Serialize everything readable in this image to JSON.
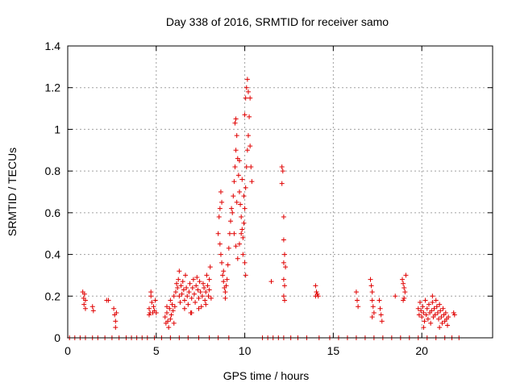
{
  "chart_data": {
    "type": "scatter",
    "title": "Day 338 of 2016, SRMTID for receiver samo",
    "xlabel": "GPS time / hours",
    "ylabel": "SRMTID / TECUs",
    "xlim": [
      0,
      24
    ],
    "ylim": [
      0,
      1.4
    ],
    "xticks": [
      0,
      5,
      10,
      15,
      20
    ],
    "yticks": [
      0,
      0.2,
      0.4,
      0.6,
      0.8,
      1,
      1.2,
      1.4
    ],
    "xtick_labels": [
      "0",
      "5",
      "10",
      "15",
      "20"
    ],
    "ytick_labels": [
      "0",
      "0.2",
      "0.4",
      "0.6",
      "0.8",
      "1",
      "1.2",
      "1.4"
    ],
    "grid": true,
    "marker": "+",
    "series_color": "#e00000",
    "series": [
      {
        "name": "SRMTID",
        "points": [
          [
            0.1,
            0
          ],
          [
            0.4,
            0
          ],
          [
            0.7,
            0
          ],
          [
            1.0,
            0
          ],
          [
            1.4,
            0
          ],
          [
            1.7,
            0
          ],
          [
            2.1,
            0
          ],
          [
            2.5,
            0
          ],
          [
            2.9,
            0
          ],
          [
            3.3,
            0
          ],
          [
            3.6,
            0
          ],
          [
            3.9,
            0
          ],
          [
            4.2,
            0
          ],
          [
            4.5,
            0
          ],
          [
            4.9,
            0
          ],
          [
            5.3,
            0
          ],
          [
            5.8,
            0
          ],
          [
            6.3,
            0
          ],
          [
            6.8,
            0
          ],
          [
            7.4,
            0
          ],
          [
            8.0,
            0
          ],
          [
            8.5,
            0
          ],
          [
            9.1,
            0
          ],
          [
            11.0,
            0
          ],
          [
            11.3,
            0
          ],
          [
            11.6,
            0
          ],
          [
            11.9,
            0
          ],
          [
            12.2,
            0
          ],
          [
            12.6,
            0
          ],
          [
            13.0,
            0
          ],
          [
            13.5,
            0
          ],
          [
            14.2,
            0
          ],
          [
            14.8,
            0
          ],
          [
            15.3,
            0
          ],
          [
            15.8,
            0
          ],
          [
            16.3,
            0
          ],
          [
            16.8,
            0
          ],
          [
            17.3,
            0
          ],
          [
            17.8,
            0
          ],
          [
            18.3,
            0
          ],
          [
            18.8,
            0
          ],
          [
            19.3,
            0
          ],
          [
            19.8,
            0
          ],
          [
            20.3,
            0
          ],
          [
            20.8,
            0
          ],
          [
            21.3,
            0
          ],
          [
            21.7,
            0
          ],
          [
            22.1,
            0
          ],
          [
            0.85,
            0.22
          ],
          [
            0.9,
            0.19
          ],
          [
            0.92,
            0.16
          ],
          [
            0.95,
            0.21
          ],
          [
            1.0,
            0.18
          ],
          [
            1.0,
            0.14
          ],
          [
            1.4,
            0.15
          ],
          [
            1.45,
            0.13
          ],
          [
            2.2,
            0.18
          ],
          [
            2.3,
            0.18
          ],
          [
            2.6,
            0.14
          ],
          [
            2.65,
            0.11
          ],
          [
            2.7,
            0.08
          ],
          [
            2.7,
            0.05
          ],
          [
            2.75,
            0.12
          ],
          [
            4.6,
            0.14
          ],
          [
            4.65,
            0.12
          ],
          [
            4.7,
            0.2
          ],
          [
            4.7,
            0.22
          ],
          [
            4.75,
            0.17
          ],
          [
            4.8,
            0.12
          ],
          [
            4.85,
            0.15
          ],
          [
            4.9,
            0.13
          ],
          [
            4.95,
            0.18
          ],
          [
            4.6,
            0.11
          ],
          [
            5.0,
            0.12
          ],
          [
            5.5,
            0.1
          ],
          [
            5.55,
            0.07
          ],
          [
            5.6,
            0.12
          ],
          [
            5.65,
            0.08
          ],
          [
            5.7,
            0.05
          ],
          [
            5.75,
            0.14
          ],
          [
            5.8,
            0.09
          ],
          [
            5.85,
            0.11
          ],
          [
            5.9,
            0.16
          ],
          [
            5.95,
            0.13
          ],
          [
            6.0,
            0.07
          ],
          [
            5.6,
            0.15
          ],
          [
            5.8,
            0.18
          ],
          [
            6.0,
            0.2
          ],
          [
            6.05,
            0.15
          ],
          [
            6.1,
            0.22
          ],
          [
            6.15,
            0.26
          ],
          [
            6.2,
            0.24
          ],
          [
            6.25,
            0.28
          ],
          [
            6.3,
            0.2
          ],
          [
            6.35,
            0.17
          ],
          [
            6.4,
            0.25
          ],
          [
            6.45,
            0.21
          ],
          [
            6.5,
            0.27
          ],
          [
            6.55,
            0.23
          ],
          [
            6.6,
            0.18
          ],
          [
            6.65,
            0.3
          ],
          [
            6.7,
            0.24
          ],
          [
            6.75,
            0.2
          ],
          [
            6.8,
            0.16
          ],
          [
            6.85,
            0.22
          ],
          [
            6.9,
            0.26
          ],
          [
            6.95,
            0.12
          ],
          [
            7.0,
            0.19
          ],
          [
            7.05,
            0.24
          ],
          [
            7.1,
            0.28
          ],
          [
            7.15,
            0.21
          ],
          [
            7.2,
            0.17
          ],
          [
            7.25,
            0.25
          ],
          [
            7.3,
            0.29
          ],
          [
            7.35,
            0.23
          ],
          [
            7.4,
            0.19
          ],
          [
            7.45,
            0.27
          ],
          [
            7.5,
            0.22
          ],
          [
            7.55,
            0.15
          ],
          [
            7.6,
            0.2
          ],
          [
            7.65,
            0.26
          ],
          [
            7.7,
            0.24
          ],
          [
            7.75,
            0.18
          ],
          [
            7.8,
            0.22
          ],
          [
            7.85,
            0.3
          ],
          [
            7.9,
            0.25
          ],
          [
            7.95,
            0.2
          ],
          [
            8.0,
            0.23
          ],
          [
            8.05,
            0.34
          ],
          [
            8.1,
            0.19
          ],
          [
            6.3,
            0.32
          ],
          [
            6.6,
            0.14
          ],
          [
            7.0,
            0.12
          ],
          [
            7.4,
            0.14
          ],
          [
            7.8,
            0.16
          ],
          [
            8.0,
            0.28
          ],
          [
            8.5,
            0.5
          ],
          [
            8.55,
            0.58
          ],
          [
            8.6,
            0.62
          ],
          [
            8.65,
            0.7
          ],
          [
            8.7,
            0.65
          ],
          [
            8.6,
            0.45
          ],
          [
            8.65,
            0.4
          ],
          [
            8.7,
            0.36
          ],
          [
            8.75,
            0.3
          ],
          [
            8.8,
            0.27
          ],
          [
            8.85,
            0.24
          ],
          [
            8.9,
            0.22
          ],
          [
            8.95,
            0.25
          ],
          [
            9.0,
            0.28
          ],
          [
            9.05,
            0.35
          ],
          [
            9.1,
            0.43
          ],
          [
            9.15,
            0.5
          ],
          [
            9.2,
            0.56
          ],
          [
            9.25,
            0.62
          ],
          [
            8.8,
            0.32
          ],
          [
            8.9,
            0.19
          ],
          [
            9.3,
            0.6
          ],
          [
            9.35,
            0.68
          ],
          [
            9.4,
            0.75
          ],
          [
            9.45,
            0.82
          ],
          [
            9.5,
            0.9
          ],
          [
            9.55,
            0.97
          ],
          [
            9.5,
            1.05
          ],
          [
            9.45,
            1.03
          ],
          [
            9.6,
            0.86
          ],
          [
            9.65,
            0.78
          ],
          [
            9.7,
            0.7
          ],
          [
            9.75,
            0.64
          ],
          [
            9.8,
            0.58
          ],
          [
            9.85,
            0.52
          ],
          [
            9.9,
            0.48
          ],
          [
            9.95,
            0.55
          ],
          [
            10.0,
            0.62
          ],
          [
            10.05,
            0.72
          ],
          [
            10.1,
            0.82
          ],
          [
            10.15,
            0.9
          ],
          [
            10.2,
            0.97
          ],
          [
            10.0,
            1.07
          ],
          [
            10.05,
            1.15
          ],
          [
            10.1,
            1.2
          ],
          [
            10.15,
            1.24
          ],
          [
            10.2,
            1.18
          ],
          [
            10.3,
            1.15
          ],
          [
            10.25,
            1.06
          ],
          [
            10.3,
            0.92
          ],
          [
            10.35,
            0.82
          ],
          [
            10.4,
            0.75
          ],
          [
            9.4,
            0.5
          ],
          [
            9.5,
            0.44
          ],
          [
            9.6,
            0.38
          ],
          [
            9.7,
            0.45
          ],
          [
            9.8,
            0.5
          ],
          [
            9.9,
            0.4
          ],
          [
            10.0,
            0.36
          ],
          [
            10.05,
            0.3
          ],
          [
            9.55,
            0.65
          ],
          [
            9.7,
            0.85
          ],
          [
            9.85,
            0.76
          ],
          [
            9.95,
            0.68
          ],
          [
            11.5,
            0.27
          ],
          [
            12.1,
            0.82
          ],
          [
            12.15,
            0.8
          ],
          [
            12.1,
            0.74
          ],
          [
            12.2,
            0.58
          ],
          [
            12.2,
            0.47
          ],
          [
            12.25,
            0.4
          ],
          [
            12.2,
            0.36
          ],
          [
            12.3,
            0.34
          ],
          [
            12.2,
            0.28
          ],
          [
            12.25,
            0.25
          ],
          [
            12.2,
            0.2
          ],
          [
            12.25,
            0.18
          ],
          [
            14.0,
            0.25
          ],
          [
            14.05,
            0.22
          ],
          [
            14.1,
            0.21
          ],
          [
            14.15,
            0.2
          ],
          [
            14.0,
            0.2
          ],
          [
            16.3,
            0.22
          ],
          [
            16.35,
            0.18
          ],
          [
            16.4,
            0.15
          ],
          [
            17.1,
            0.28
          ],
          [
            17.15,
            0.25
          ],
          [
            17.2,
            0.22
          ],
          [
            17.2,
            0.18
          ],
          [
            17.25,
            0.15
          ],
          [
            17.3,
            0.12
          ],
          [
            17.2,
            0.1
          ],
          [
            17.6,
            0.18
          ],
          [
            17.65,
            0.14
          ],
          [
            17.7,
            0.11
          ],
          [
            17.75,
            0.08
          ],
          [
            18.5,
            0.2
          ],
          [
            18.9,
            0.28
          ],
          [
            18.95,
            0.26
          ],
          [
            19.0,
            0.24
          ],
          [
            19.05,
            0.22
          ],
          [
            19.0,
            0.19
          ],
          [
            19.1,
            0.3
          ],
          [
            18.95,
            0.18
          ],
          [
            19.8,
            0.14
          ],
          [
            19.85,
            0.11
          ],
          [
            19.9,
            0.17
          ],
          [
            19.95,
            0.13
          ],
          [
            20.0,
            0.1
          ],
          [
            20.05,
            0.15
          ],
          [
            20.1,
            0.12
          ],
          [
            20.15,
            0.08
          ],
          [
            20.2,
            0.18
          ],
          [
            20.25,
            0.11
          ],
          [
            20.3,
            0.14
          ],
          [
            20.35,
            0.09
          ],
          [
            20.4,
            0.16
          ],
          [
            20.45,
            0.12
          ],
          [
            20.5,
            0.07
          ],
          [
            20.55,
            0.13
          ],
          [
            20.6,
            0.17
          ],
          [
            20.65,
            0.1
          ],
          [
            20.7,
            0.14
          ],
          [
            20.75,
            0.11
          ],
          [
            20.8,
            0.18
          ],
          [
            20.85,
            0.15
          ],
          [
            20.9,
            0.12
          ],
          [
            20.95,
            0.09
          ],
          [
            21.0,
            0.16
          ],
          [
            21.05,
            0.13
          ],
          [
            21.1,
            0.1
          ],
          [
            21.15,
            0.07
          ],
          [
            21.2,
            0.14
          ],
          [
            21.25,
            0.11
          ],
          [
            21.3,
            0.08
          ],
          [
            21.35,
            0.12
          ],
          [
            21.4,
            0.09
          ],
          [
            21.45,
            0.06
          ],
          [
            21.5,
            0.1
          ],
          [
            20.1,
            0.05
          ],
          [
            20.6,
            0.2
          ],
          [
            21.0,
            0.05
          ],
          [
            21.8,
            0.12
          ],
          [
            21.85,
            0.11
          ]
        ]
      }
    ]
  }
}
